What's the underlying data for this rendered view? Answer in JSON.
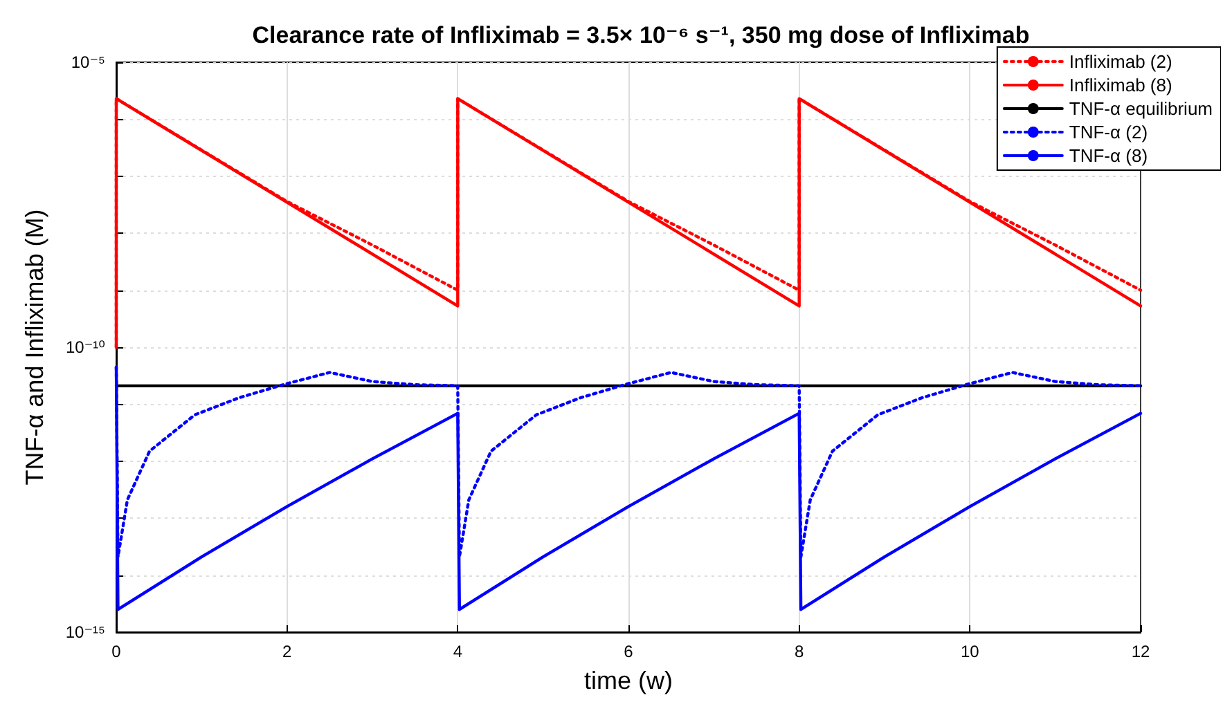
{
  "chart_data": {
    "type": "line",
    "title": "Clearance rate of Infliximab = 3.5× 10⁻⁶ s⁻¹, 350 mg dose of Infliximab",
    "xlabel": "time (w)",
    "ylabel": "TNF-α and Infliximab (M)",
    "xlim": [
      0,
      12
    ],
    "xticks": [
      0,
      2,
      4,
      6,
      8,
      10,
      12
    ],
    "ylim": [
      1e-15,
      1e-05
    ],
    "yticks": [
      {
        "value": 1e-15,
        "label": "10⁻¹⁵"
      },
      {
        "value": 1e-14,
        "label": null
      },
      {
        "value": 1e-13,
        "label": null
      },
      {
        "value": 1e-12,
        "label": null
      },
      {
        "value": 1e-11,
        "label": null
      },
      {
        "value": 1e-10,
        "label": "10⁻¹⁰"
      },
      {
        "value": 1e-09,
        "label": null
      },
      {
        "value": 1e-08,
        "label": null
      },
      {
        "value": 1e-07,
        "label": null
      },
      {
        "value": 1e-06,
        "label": null
      },
      {
        "value": 1e-05,
        "label": "10⁻⁵"
      }
    ],
    "log": "y",
    "grid": true,
    "legend": "top right",
    "marker": "none",
    "series": [
      {
        "name": "Infliximab (2)",
        "color": "#ff0000",
        "line_style": "dotted",
        "x": [
          0,
          0,
          2,
          3,
          4,
          4,
          6,
          7,
          8,
          8,
          10,
          11,
          12
        ],
        "values": [
          1e-10,
          2.3e-06,
          3.6e-08,
          6.2e-09,
          1e-09,
          2.3e-06,
          3.6e-08,
          6.2e-09,
          1e-09,
          2.3e-06,
          3.6e-08,
          6.2e-09,
          1e-09
        ]
      },
      {
        "name": "Infliximab (8)",
        "color": "#ff0000",
        "line_style": "solid",
        "x": [
          0,
          0,
          4,
          4,
          8,
          8,
          12
        ],
        "values": [
          1e-10,
          2.3e-06,
          5.3e-10,
          2.3e-06,
          5.3e-10,
          2.3e-06,
          5.3e-10
        ]
      },
      {
        "name": "TNF-α equilibrium",
        "color": "#000000",
        "line_style": "solid",
        "x": [
          0,
          12
        ],
        "values": [
          2.1e-11,
          2.1e-11
        ]
      },
      {
        "name": "TNF-α (2)",
        "color": "#0000ff",
        "line_style": "dotted",
        "x": [
          0,
          0.02,
          0.13,
          0.39,
          0.92,
          1.44,
          2,
          2.5,
          3,
          3.5,
          4,
          4.02,
          4.13,
          4.39,
          4.92,
          5.44,
          6,
          6.5,
          7,
          7.5,
          8,
          8.02,
          8.13,
          8.39,
          8.92,
          9.44,
          10,
          10.5,
          11,
          11.5,
          12
        ],
        "values": [
          4.5e-11,
          2.1e-14,
          2.1e-13,
          1.5e-12,
          6.5e-12,
          1.3e-11,
          2.3e-11,
          3.6e-11,
          2.5e-11,
          2.2e-11,
          2.1e-11,
          2.1e-14,
          2.1e-13,
          1.5e-12,
          6.5e-12,
          1.3e-11,
          2.3e-11,
          3.6e-11,
          2.5e-11,
          2.2e-11,
          2.1e-11,
          2.1e-14,
          2.1e-13,
          1.5e-12,
          6.5e-12,
          1.3e-11,
          2.3e-11,
          3.6e-11,
          2.5e-11,
          2.2e-11,
          2.1e-11
        ]
      },
      {
        "name": "TNF-α (8)",
        "color": "#0000ff",
        "line_style": "solid",
        "x": [
          0,
          0.02,
          1,
          2,
          3,
          4,
          4.02,
          5,
          6,
          7,
          8,
          8.02,
          9,
          10,
          11,
          12
        ],
        "values": [
          4.5e-11,
          2.5e-15,
          2.1e-14,
          1.6e-13,
          1.1e-12,
          6.9e-12,
          2.5e-15,
          2.1e-14,
          1.6e-13,
          1.1e-12,
          6.9e-12,
          2.5e-15,
          2.1e-14,
          1.6e-13,
          1.1e-12,
          6.9e-12
        ]
      }
    ]
  }
}
